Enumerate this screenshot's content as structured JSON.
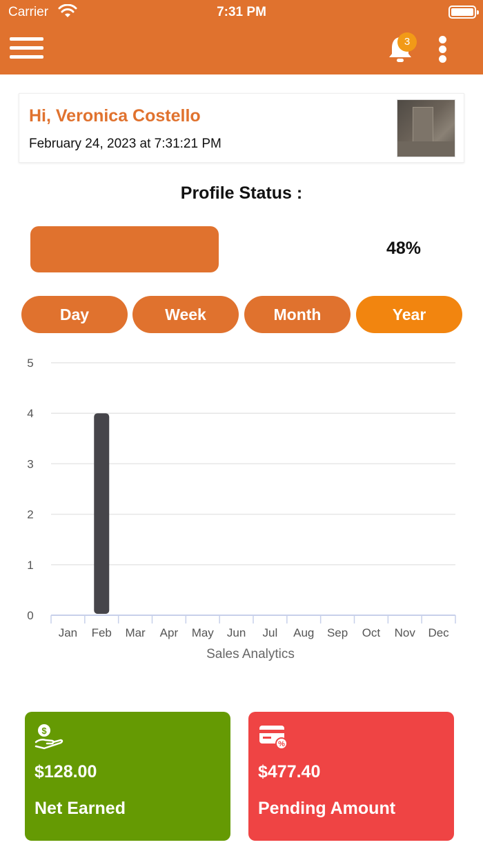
{
  "status_bar": {
    "carrier": "Carrier",
    "time": "7:31 PM"
  },
  "header": {
    "notification_count": "3"
  },
  "greeting": {
    "name": "Hi, Veronica Costello",
    "datetime": "February 24, 2023 at 7:31:21 PM"
  },
  "profile": {
    "label": "Profile Status :",
    "percent_text": "48%",
    "percent": 48
  },
  "periods": [
    {
      "label": "Day",
      "active": false
    },
    {
      "label": "Week",
      "active": false
    },
    {
      "label": "Month",
      "active": false
    },
    {
      "label": "Year",
      "active": true
    }
  ],
  "chart_data": {
    "type": "bar",
    "categories": [
      "Jan",
      "Feb",
      "Mar",
      "Apr",
      "May",
      "Jun",
      "Jul",
      "Aug",
      "Sep",
      "Oct",
      "Nov",
      "Dec"
    ],
    "values": [
      0,
      4,
      0,
      0,
      0,
      0,
      0,
      0,
      0,
      0,
      0,
      0
    ],
    "xlabel": "Sales Analytics",
    "ylabel": "",
    "ylim": [
      0,
      5
    ],
    "yticks": [
      0,
      1,
      2,
      3,
      4,
      5
    ],
    "grid": true,
    "bar_color": "#46454a"
  },
  "cards": [
    {
      "amount": "$128.00",
      "caption": "Net Earned",
      "color": "#659a03",
      "icon": "money-hand-icon"
    },
    {
      "amount": "$477.40",
      "caption": "Pending Amount",
      "color": "#ef4444",
      "icon": "credit-card-icon"
    }
  ],
  "colors": {
    "accent": "#e0722e",
    "active_button": "#f2850f"
  }
}
